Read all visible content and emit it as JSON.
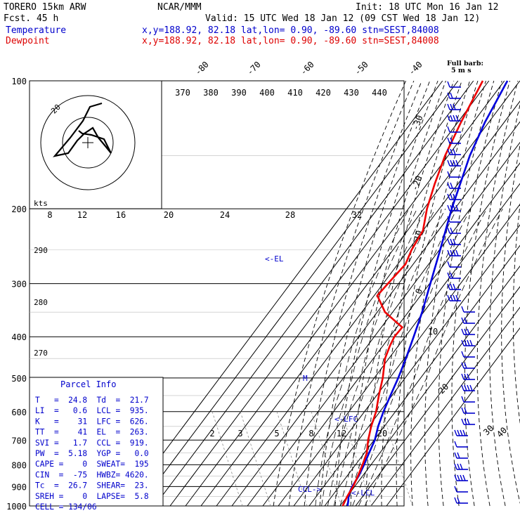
{
  "header": {
    "model": "TORERO  15km ARW",
    "center": "NCAR/MMM",
    "init": "Init: 18 UTC Mon 16 Jan 12",
    "fcst": "Fcst.   45 h",
    "valid": "Valid: 15 UTC Wed 18 Jan 12 (09 CST Wed 18 Jan 12)",
    "temperature_label": "Temperature",
    "dewpoint_label": "Dewpoint",
    "location_text": "x,y=188.92, 82.18   lat,lon=  0.90, -89.60   stn=SEST,84008",
    "full_barb_line1": "Full barb:",
    "full_barb_line2": "5 m s"
  },
  "chart_data": {
    "type": "line",
    "title": "",
    "ylabel": "",
    "xlabel": "",
    "pressure_levels": [
      "100",
      "200",
      "300",
      "400",
      "500",
      "600",
      "700",
      "800",
      "900",
      "1000"
    ],
    "temperature_ticks": [
      "-80",
      "-70",
      "-60",
      "-50",
      "-40",
      "-30",
      "-20",
      "-10",
      "0",
      "10",
      "20",
      "30",
      "40"
    ],
    "theta_labels": [
      "370",
      "380",
      "390",
      "400",
      "410",
      "420",
      "430",
      "440"
    ],
    "theta_side_labels": [
      "290",
      "280",
      "270"
    ],
    "mixing_ratio_labels": [
      "2",
      "3",
      "5",
      "8",
      "12",
      "20"
    ],
    "hodograph": {
      "speed_unit": "kts",
      "speed_ring_label": "20",
      "axis_ticks": [
        "8",
        "12",
        "16",
        "20",
        "24",
        "28",
        "32"
      ]
    },
    "series": [
      {
        "name": "Temperature",
        "color": "#0000dd",
        "points": [
          {
            "p": 1000,
            "t": 24.8
          },
          {
            "p": 975,
            "t": 23.0
          },
          {
            "p": 950,
            "t": 20.9
          },
          {
            "p": 925,
            "t": 19.4
          },
          {
            "p": 900,
            "t": 18.4
          },
          {
            "p": 850,
            "t": 17.5
          },
          {
            "p": 800,
            "t": 15.5
          },
          {
            "p": 750,
            "t": 13.0
          },
          {
            "p": 700,
            "t": 10.5
          },
          {
            "p": 650,
            "t": 6.0
          },
          {
            "p": 600,
            "t": 2.3
          },
          {
            "p": 550,
            "t": -1.0
          },
          {
            "p": 500,
            "t": -4.5
          },
          {
            "p": 450,
            "t": -9.0
          },
          {
            "p": 400,
            "t": -14.5
          },
          {
            "p": 350,
            "t": -21.0
          },
          {
            "p": 300,
            "t": -29.5
          },
          {
            "p": 250,
            "t": -39.5
          },
          {
            "p": 200,
            "t": -52.0
          },
          {
            "p": 150,
            "t": -66.0
          },
          {
            "p": 125,
            "t": -72.5
          },
          {
            "p": 100,
            "t": -78.0
          }
        ]
      },
      {
        "name": "Dewpoint",
        "color": "#ee0000",
        "points": [
          {
            "p": 1000,
            "t": 21.7
          },
          {
            "p": 950,
            "t": 20.0
          },
          {
            "p": 900,
            "t": 19.0
          },
          {
            "p": 850,
            "t": 17.0
          },
          {
            "p": 800,
            "t": 14.5
          },
          {
            "p": 750,
            "t": 11.5
          },
          {
            "p": 700,
            "t": 6.2
          },
          {
            "p": 650,
            "t": 1.5
          },
          {
            "p": 600,
            "t": -2.5
          },
          {
            "p": 550,
            "t": -8.5
          },
          {
            "p": 500,
            "t": -14.5
          },
          {
            "p": 450,
            "t": -22.5
          },
          {
            "p": 420,
            "t": -25.5
          },
          {
            "p": 400,
            "t": -27.0
          },
          {
            "p": 380,
            "t": -26.5
          },
          {
            "p": 350,
            "t": -45.0
          },
          {
            "p": 320,
            "t": -58.0
          },
          {
            "p": 300,
            "t": -57.0
          },
          {
            "p": 270,
            "t": -55.0
          },
          {
            "p": 250,
            "t": -58.0
          },
          {
            "p": 225,
            "t": -60.0
          },
          {
            "p": 200,
            "t": -68.0
          },
          {
            "p": 175,
            "t": -75.0
          },
          {
            "p": 150,
            "t": -82.0
          },
          {
            "p": 125,
            "t": -88.0
          },
          {
            "p": 100,
            "t": -94.0
          }
        ]
      }
    ],
    "annotations": [
      "<-EL",
      "<-LFC",
      "<-LCL",
      "CCL->",
      "M"
    ],
    "parcel_info": {
      "title": "Parcel Info",
      "rows": [
        "T   =  24.8  Td  =  21.7",
        "LI  =   0.6  LCL =  935.",
        "K   =    31  LFC =  626.",
        "TT  =    41  EL  =  263.",
        "SVI =   1.7  CCL =  919.",
        "PW  =  5.18  YGP =   0.0",
        "CAPE =    0  SWEAT=  195",
        "CIN  =  -75  HWBZ= 4620.",
        "Tc  =  26.7  SHEAR=  23.",
        "SREH =    0  LAPSE=  5.8",
        "CELL = 134/06"
      ]
    },
    "grid": true
  }
}
